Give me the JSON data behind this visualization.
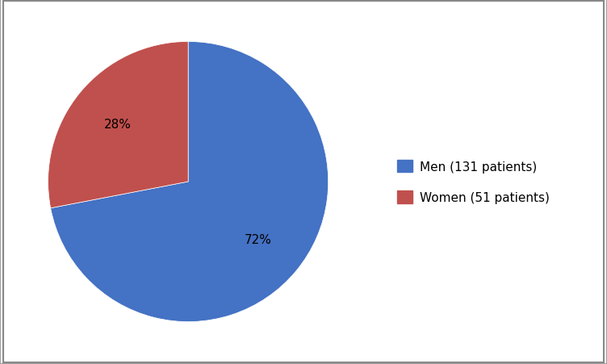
{
  "labels": [
    "Men (131 patients)",
    "Women (51 patients)"
  ],
  "values": [
    131,
    51
  ],
  "colors": [
    "#4472C4",
    "#C0504D"
  ],
  "startangle": 90,
  "background_color": "#ffffff",
  "legend_fontsize": 11,
  "autopct_fontsize": 11,
  "border_color": "#a0a0a0"
}
